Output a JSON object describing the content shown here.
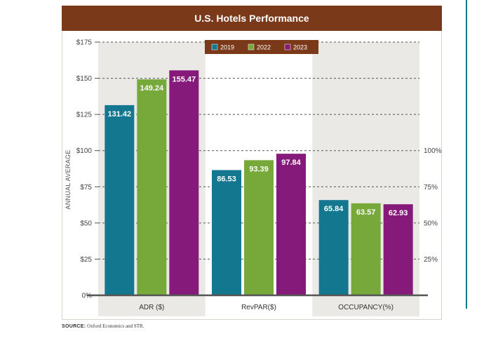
{
  "chart_data": {
    "type": "bar",
    "title": "U.S. Hotels Performance",
    "ylabel": "ANNUAL AVERAGE",
    "categories": [
      "ADR ($)",
      "RevPAR($)",
      "OCCUPANCY(%)"
    ],
    "series": [
      {
        "name": "2019",
        "color": "#13788f",
        "values": [
          131.42,
          86.53,
          65.84
        ]
      },
      {
        "name": "2022",
        "color": "#76a83a",
        "values": [
          149.24,
          93.39,
          63.57
        ]
      },
      {
        "name": "2023",
        "color": "#861a7b",
        "values": [
          155.47,
          97.84,
          62.93
        ]
      }
    ],
    "left_axis": {
      "ticks": [
        0,
        25,
        50,
        75,
        100,
        125,
        150,
        175
      ],
      "labels": [
        "0%",
        "$25",
        "$50",
        "$75",
        "$100",
        "$125",
        "$150",
        "$175"
      ],
      "ylim": [
        0,
        175
      ]
    },
    "right_axis": {
      "ticks": [
        25,
        50,
        75,
        100
      ],
      "labels": [
        "25%",
        "50%",
        "75%",
        "100%"
      ],
      "ylim": [
        0,
        175
      ],
      "applies_to": "OCCUPANCY(%)"
    },
    "gridlines": true,
    "legend": "top-center"
  },
  "source": {
    "label": "SOURCE:",
    "text": "Oxford Economics and STR."
  },
  "colors": {
    "title_bar": "#7a3a1a",
    "panel_shade": "#ebe9e6",
    "legend_bg": "#7a3a1a",
    "right_rule": "#17768e"
  }
}
